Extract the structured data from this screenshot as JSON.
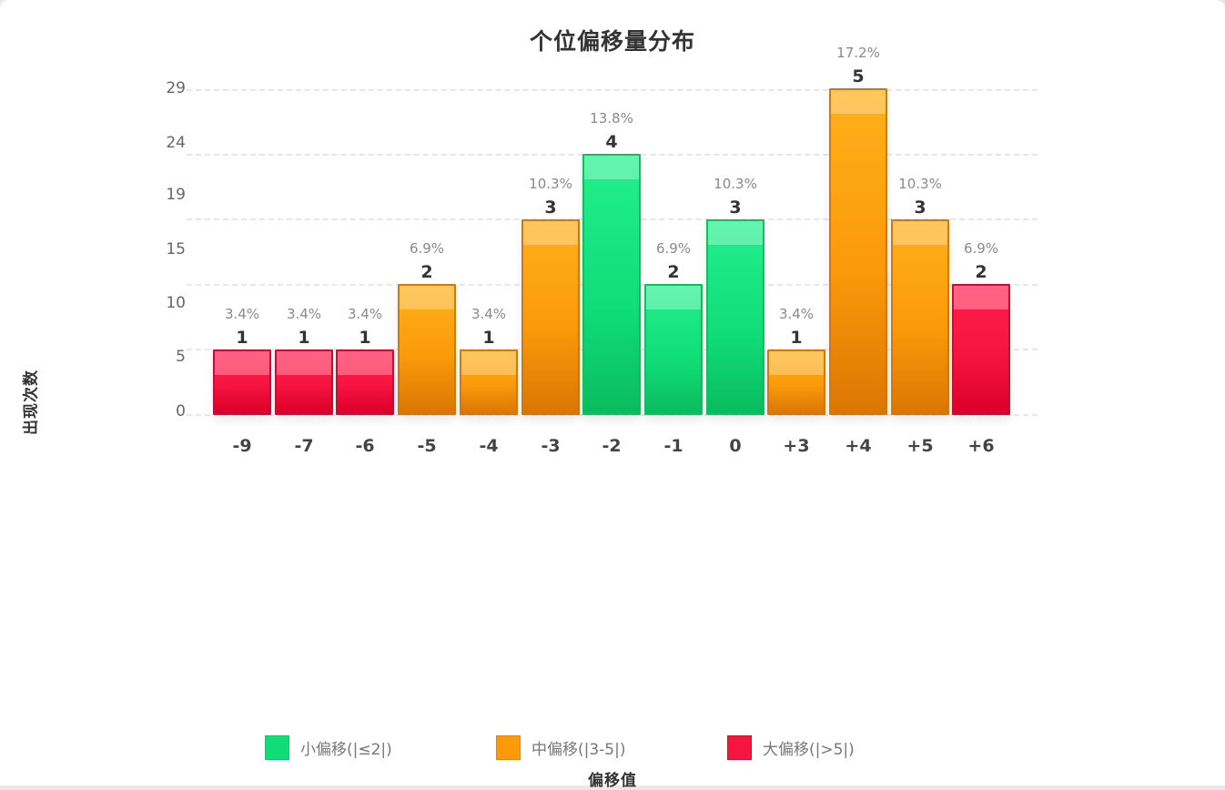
{
  "chart_data": {
    "type": "bar",
    "title": "个位偏移量分布",
    "xlabel": "偏移值",
    "ylabel": "出现次数",
    "categories": [
      "-9",
      "-7",
      "-6",
      "-5",
      "-4",
      "-3",
      "-2",
      "-1",
      "0",
      "+3",
      "+4",
      "+5",
      "+6"
    ],
    "values": [
      1,
      1,
      1,
      2,
      1,
      3,
      4,
      2,
      3,
      1,
      5,
      3,
      2
    ],
    "percentages": [
      "3.4%",
      "3.4%",
      "3.4%",
      "6.9%",
      "3.4%",
      "10.3%",
      "13.8%",
      "6.9%",
      "10.3%",
      "3.4%",
      "17.2%",
      "10.3%",
      "6.9%"
    ],
    "groups": [
      "large",
      "large",
      "large",
      "medium",
      "medium",
      "medium",
      "small",
      "small",
      "small",
      "medium",
      "medium",
      "medium",
      "large"
    ],
    "ytick_labels": [
      "0",
      "5",
      "10",
      "15",
      "19",
      "24",
      "29"
    ],
    "ylim": [
      0,
      5
    ],
    "grid": true,
    "legend_position": "bottom",
    "legend": [
      {
        "key": "small",
        "label": "小偏移(|≤2|)",
        "color": "#10dc78"
      },
      {
        "key": "medium",
        "label": "中偏移(|3-5|)",
        "color": "#fb9a0a"
      },
      {
        "key": "large",
        "label": "大偏移(|>5|)",
        "color": "#f61440"
      }
    ]
  },
  "colors": {
    "small": "#10dc78",
    "medium": "#fb9a0a",
    "large": "#f61440",
    "grid": "#e6e7ea",
    "text_dark": "#333333",
    "text_muted": "#8a8a8a"
  }
}
